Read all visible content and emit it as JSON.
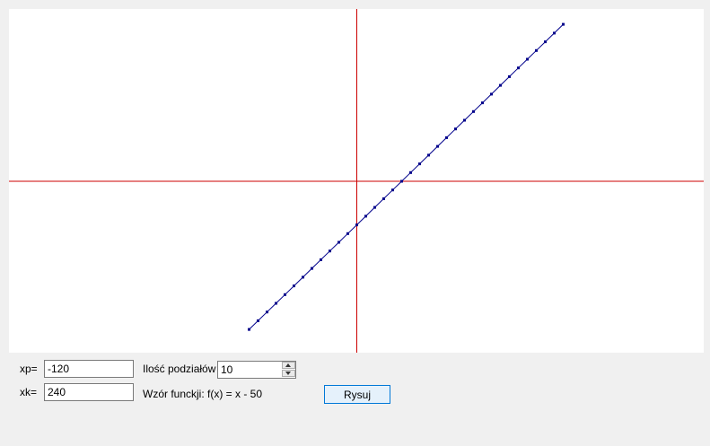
{
  "inputs": {
    "xp_label": "xp=",
    "xp_value": "-120",
    "xk_label": "xk=",
    "xk_value": "240",
    "divisions_label": "Ilość podziałów",
    "divisions_value": "10",
    "formula_label": "Wzór funckji: f(x) = x - 50"
  },
  "buttons": {
    "draw_label": "Rysuj"
  },
  "colors": {
    "axis": "#cc0000",
    "function_line": "#00008b",
    "point": "#00008b"
  },
  "chart_data": {
    "type": "line",
    "points": [
      [
        -120,
        -170
      ],
      [
        -110,
        -160
      ],
      [
        -100,
        -150
      ],
      [
        -90,
        -140
      ],
      [
        -80,
        -130
      ],
      [
        -70,
        -120
      ],
      [
        -60,
        -110
      ],
      [
        -50,
        -100
      ],
      [
        -40,
        -90
      ],
      [
        -30,
        -80
      ],
      [
        -20,
        -70
      ],
      [
        -10,
        -60
      ],
      [
        0,
        -50
      ],
      [
        10,
        -40
      ],
      [
        20,
        -30
      ],
      [
        30,
        -20
      ],
      [
        40,
        -10
      ],
      [
        50,
        0
      ],
      [
        60,
        10
      ],
      [
        70,
        20
      ],
      [
        80,
        30
      ],
      [
        90,
        40
      ],
      [
        100,
        50
      ],
      [
        110,
        60
      ],
      [
        120,
        70
      ],
      [
        130,
        80
      ],
      [
        140,
        90
      ],
      [
        150,
        100
      ],
      [
        160,
        110
      ],
      [
        170,
        120
      ],
      [
        180,
        130
      ],
      [
        190,
        140
      ],
      [
        200,
        150
      ],
      [
        210,
        160
      ],
      [
        220,
        170
      ],
      [
        230,
        180
      ]
    ]
  }
}
